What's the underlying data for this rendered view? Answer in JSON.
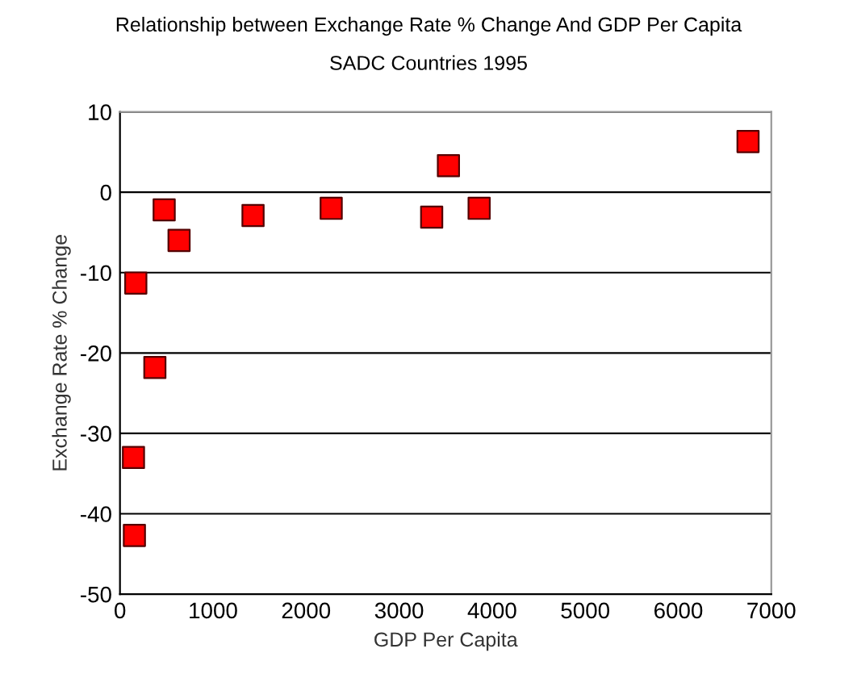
{
  "chart_data": {
    "type": "scatter",
    "title": "Relationship between Exchange Rate % Change And GDP Per Capita",
    "subtitle": "SADC Countries 1995",
    "xlabel": "GDP Per Capita",
    "ylabel": "Exchange Rate % Change",
    "x": [
      170,
      375,
      145,
      155,
      475,
      635,
      1430,
      2270,
      3350,
      3530,
      3860,
      6750
    ],
    "series": [
      {
        "color": "#ff0000",
        "values": [
          -11.3,
          -21.8,
          -33,
          -42.7,
          -2.2,
          -6,
          -2.9,
          -2,
          -3.1,
          3.3,
          -2,
          6.3
        ]
      }
    ],
    "xlim": [
      0,
      7000
    ],
    "xticks": [
      0,
      1000,
      2000,
      3000,
      4000,
      5000,
      6000,
      7000
    ],
    "ylim": [
      -50,
      10
    ],
    "yticks": [
      -50,
      -40,
      -30,
      -20,
      -10,
      0,
      10
    ],
    "grid": "y",
    "marker": "square"
  }
}
